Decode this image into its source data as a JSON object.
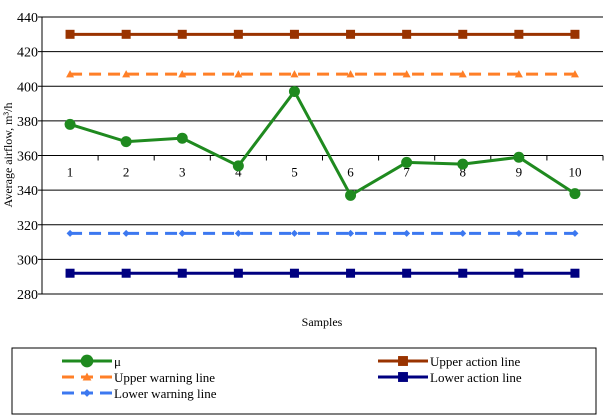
{
  "chart_data": {
    "type": "line",
    "title": "",
    "xlabel": "Samples",
    "ylabel": "Average airflow,  m³/h",
    "ylim": [
      280,
      440
    ],
    "yticks": [
      280,
      300,
      320,
      340,
      360,
      380,
      400,
      420,
      440
    ],
    "categories": [
      "1",
      "2",
      "3",
      "4",
      "5",
      "6",
      "7",
      "8",
      "9",
      "10"
    ],
    "grid": "horizontal",
    "legend_position": "bottom",
    "series": [
      {
        "name": "μ",
        "values": [
          378,
          368,
          370,
          354,
          397,
          337,
          356,
          355,
          359,
          338
        ],
        "color": "#1f8a1f",
        "marker": "circle",
        "dashed": false
      },
      {
        "name": "Upper action line",
        "values": [
          430,
          430,
          430,
          430,
          430,
          430,
          430,
          430,
          430,
          430
        ],
        "color": "#993300",
        "marker": "square",
        "dashed": false
      },
      {
        "name": "Upper warning line",
        "values": [
          407,
          407,
          407,
          407,
          407,
          407,
          407,
          407,
          407,
          407
        ],
        "color": "#ff7f27",
        "marker": "triangle",
        "dashed": true
      },
      {
        "name": "Lower action line",
        "values": [
          292,
          292,
          292,
          292,
          292,
          292,
          292,
          292,
          292,
          292
        ],
        "color": "#000080",
        "marker": "square",
        "dashed": false
      },
      {
        "name": "Lower warning line",
        "values": [
          315,
          315,
          315,
          315,
          315,
          315,
          315,
          315,
          315,
          315
        ],
        "color": "#3c78f0",
        "marker": "diamond",
        "dashed": true
      }
    ]
  }
}
